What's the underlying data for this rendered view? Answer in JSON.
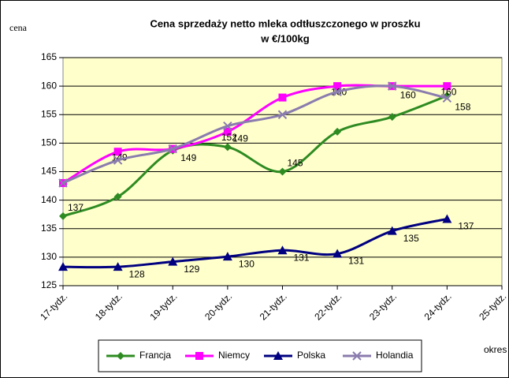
{
  "chart_data": {
    "type": "line",
    "title": "Cena sprzedaży netto mleka odtłuszczonego w proszku",
    "subtitle": "w €/100kg",
    "y_label": "cena",
    "x_label": "okres",
    "categories": [
      "17-tydz.",
      "18-tydz.",
      "19-tydz.",
      "20-tydz.",
      "21-tydz.",
      "22-tydz.",
      "23-tydz.",
      "24-tydz.",
      "25-tydz."
    ],
    "series": [
      {
        "name": "Francja",
        "color": "#2e8b22",
        "marker": "diamond",
        "values": [
          137.2,
          140.6,
          148.7,
          149.3,
          145,
          152,
          154.6,
          158.3,
          null
        ],
        "value_labels": [
          "137",
          null,
          null,
          "149",
          "145",
          null,
          null,
          null,
          null
        ]
      },
      {
        "name": "Niemcy",
        "color": "#ff00ff",
        "marker": "square",
        "values": [
          143,
          148.5,
          149,
          152,
          158,
          160,
          160,
          160,
          null
        ],
        "value_labels": [
          null,
          "149",
          null,
          "152",
          null,
          "160",
          null,
          "160",
          null
        ]
      },
      {
        "name": "Polska",
        "color": "#000080",
        "marker": "triangle",
        "values": [
          128.3,
          128.3,
          129.2,
          130.1,
          131.2,
          130.6,
          134.6,
          136.7,
          null
        ],
        "value_labels": [
          null,
          "128",
          "129",
          "130",
          "131",
          "131",
          "135",
          "137",
          null
        ]
      },
      {
        "name": "Holandia",
        "color": "#8a7cae",
        "marker": "x",
        "values": [
          143,
          147,
          149,
          153,
          155,
          159,
          160,
          157.9,
          null
        ],
        "value_labels": [
          null,
          null,
          "149",
          null,
          null,
          null,
          "160",
          "158",
          null
        ]
      }
    ],
    "ylim": [
      125,
      165
    ],
    "yticks": [
      125,
      130,
      135,
      140,
      145,
      150,
      155,
      160,
      165
    ],
    "grid": true,
    "legend": "bottom"
  }
}
